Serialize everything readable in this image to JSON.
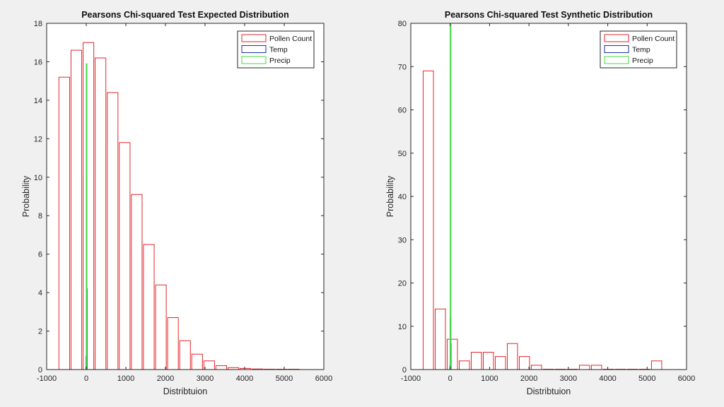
{
  "chart_data": [
    {
      "type": "bar",
      "title": "Pearsons Chi-squared Test Expected Distribution",
      "xlabel": "Distribtuion",
      "ylabel": "Probability",
      "xlim": [
        -1000,
        6000
      ],
      "ylim": [
        0,
        18
      ],
      "xticks": [
        "-1000",
        "0",
        "1000",
        "2000",
        "3000",
        "4000",
        "5000",
        "6000"
      ],
      "yticks": [
        "0",
        "2",
        "4",
        "6",
        "8",
        "10",
        "12",
        "14",
        "16",
        "18"
      ],
      "grid": false,
      "legend_position": "top-right",
      "series": [
        {
          "name": "Pollen Count",
          "color": "#e3262b",
          "bar_width": 270,
          "x": [
            -555,
            -250,
            55,
            360,
            665,
            970,
            1275,
            1580,
            1885,
            2190,
            2495,
            2800,
            3105,
            3410,
            3715,
            4020,
            4325,
            4630,
            4935,
            5240
          ],
          "values": [
            15.2,
            16.6,
            17.0,
            16.2,
            14.4,
            11.8,
            9.1,
            6.5,
            4.4,
            2.7,
            1.5,
            0.8,
            0.45,
            0.2,
            0.1,
            0.06,
            0.03,
            0.02,
            0.01,
            0.01
          ]
        },
        {
          "name": "Temp",
          "color": "#1f2ea8",
          "bar_width": 10,
          "x": [
            -2,
            5,
            12
          ],
          "values": [
            0.7,
            10.0,
            4.2
          ]
        },
        {
          "name": "Precip",
          "color": "#3fdc3f",
          "bar_width": 4,
          "x": [
            1
          ],
          "values": [
            15.9
          ]
        }
      ]
    },
    {
      "type": "bar",
      "title": "Pearsons Chi-squared Test Synthetic Distribution",
      "xlabel": "Distribtuion",
      "ylabel": "Probability",
      "xlim": [
        -1000,
        6000
      ],
      "ylim": [
        0,
        80
      ],
      "xticks": [
        "-1000",
        "0",
        "1000",
        "2000",
        "3000",
        "4000",
        "5000",
        "6000"
      ],
      "yticks": [
        "0",
        "10",
        "20",
        "30",
        "40",
        "50",
        "60",
        "70",
        "80"
      ],
      "grid": false,
      "legend_position": "top-right",
      "series": [
        {
          "name": "Pollen Count",
          "color": "#e3262b",
          "bar_width": 260,
          "x": [
            -555,
            -250,
            55,
            360,
            665,
            970,
            1275,
            1580,
            1885,
            2190,
            2495,
            2800,
            3105,
            3410,
            3715,
            4020,
            4325,
            4630,
            4935,
            5240
          ],
          "values": [
            69,
            14,
            7,
            2,
            4,
            4,
            3,
            6,
            3,
            1,
            0,
            0,
            0,
            1,
            1,
            0,
            0,
            0,
            0,
            2
          ]
        },
        {
          "name": "Temp",
          "color": "#1f2ea8",
          "bar_width": 10,
          "x": [
            -3,
            4,
            11
          ],
          "values": [
            1,
            12,
            6
          ]
        },
        {
          "name": "Precip",
          "color": "#3fdc3f",
          "bar_width": 4,
          "x": [
            1
          ],
          "values": [
            80
          ]
        }
      ]
    }
  ]
}
